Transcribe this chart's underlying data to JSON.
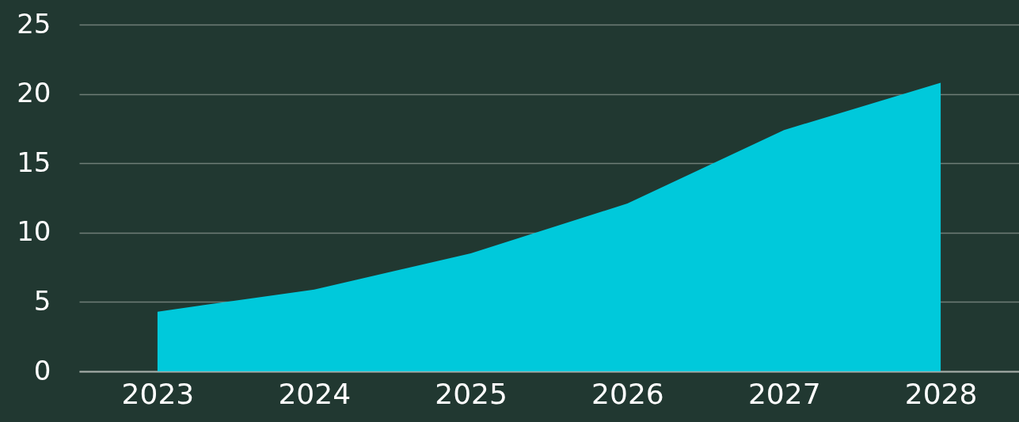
{
  "chart_data": {
    "type": "area",
    "categories": [
      "2023",
      "2024",
      "2025",
      "2026",
      "2027",
      "2028"
    ],
    "values": [
      4.3,
      5.9,
      8.5,
      12.1,
      17.4,
      20.8
    ],
    "color": "#00c9db",
    "ylim": [
      0,
      25
    ],
    "yticks": [
      0,
      5,
      10,
      15,
      20,
      25
    ],
    "grid": "y",
    "legend": false
  }
}
